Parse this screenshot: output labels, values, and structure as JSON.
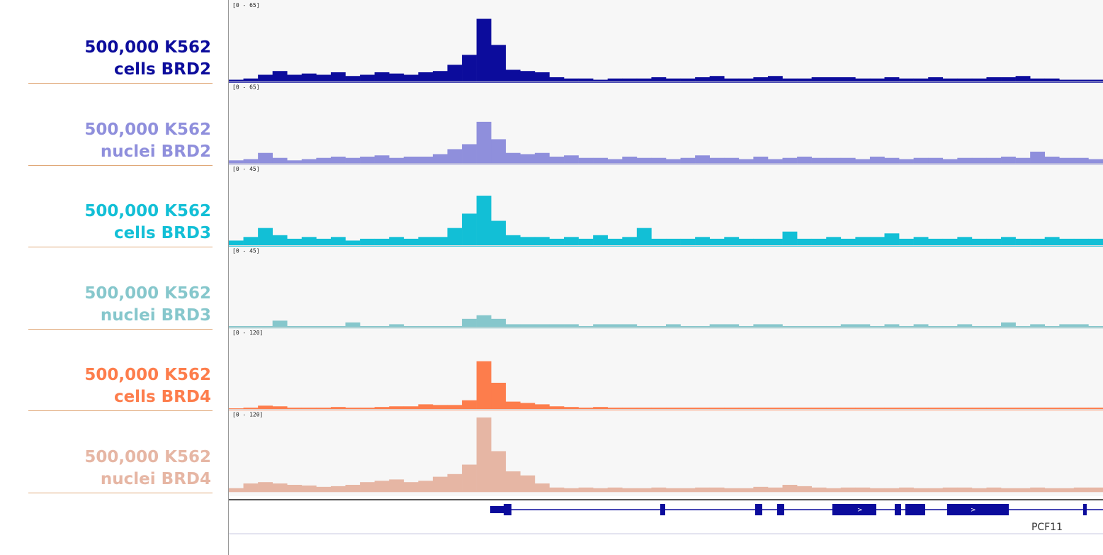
{
  "chart_data": [
    {
      "type": "bar",
      "title": "500,000 K562 cells BRD2",
      "color": "#0c0c9c",
      "ylim": [
        0,
        65
      ],
      "yticks": [
        {
          "value": 65,
          "label": "[0 - 65]"
        }
      ],
      "values": [
        2,
        3,
        6,
        9,
        6,
        7,
        6,
        8,
        5,
        6,
        8,
        7,
        6,
        8,
        9,
        14,
        22,
        51,
        30,
        10,
        9,
        8,
        4,
        3,
        3,
        2,
        3,
        3,
        3,
        4,
        3,
        3,
        4,
        5,
        3,
        3,
        4,
        5,
        3,
        3,
        4,
        4,
        4,
        3,
        3,
        4,
        3,
        3,
        4,
        3,
        3,
        3,
        4,
        4,
        5,
        3,
        3,
        2,
        2,
        2
      ]
    },
    {
      "type": "bar",
      "title": "500,000 K562 nuclei BRD2",
      "color": "#8f8fdc",
      "ylim": [
        0,
        65
      ],
      "yticks": [
        {
          "value": 65,
          "label": "[0 - 65]"
        }
      ],
      "values": [
        3,
        4,
        9,
        5,
        3,
        4,
        5,
        6,
        5,
        6,
        7,
        5,
        6,
        6,
        8,
        12,
        16,
        34,
        20,
        9,
        8,
        9,
        6,
        7,
        5,
        5,
        4,
        6,
        5,
        5,
        4,
        5,
        7,
        5,
        5,
        4,
        6,
        4,
        5,
        6,
        5,
        5,
        5,
        4,
        6,
        5,
        4,
        5,
        5,
        4,
        5,
        5,
        5,
        6,
        5,
        10,
        6,
        5,
        5,
        4
      ]
    },
    {
      "type": "bar",
      "title": "500,000 K562 cells BRD3",
      "color": "#12bfd6",
      "ylim": [
        0,
        45
      ],
      "yticks": [
        {
          "value": 45,
          "label": "[0 - 45]"
        }
      ],
      "values": [
        3,
        5,
        10,
        6,
        4,
        5,
        4,
        5,
        3,
        4,
        4,
        5,
        4,
        5,
        5,
        10,
        18,
        28,
        14,
        6,
        5,
        5,
        4,
        5,
        4,
        6,
        4,
        5,
        10,
        4,
        4,
        4,
        5,
        4,
        5,
        4,
        4,
        4,
        8,
        4,
        4,
        5,
        4,
        5,
        5,
        7,
        4,
        5,
        4,
        4,
        5,
        4,
        4,
        5,
        4,
        4,
        5,
        4,
        4,
        4
      ]
    },
    {
      "type": "bar",
      "title": "500,000 K562 nuclei BRD3",
      "color": "#86c7cc",
      "ylim": [
        0,
        45
      ],
      "yticks": [
        {
          "value": 45,
          "label": "[0 - 45]"
        }
      ],
      "values": [
        1,
        1,
        1,
        4,
        1,
        1,
        1,
        1,
        3,
        1,
        1,
        2,
        1,
        1,
        1,
        1,
        5,
        7,
        5,
        2,
        2,
        2,
        2,
        2,
        1,
        2,
        2,
        2,
        1,
        1,
        2,
        1,
        1,
        2,
        2,
        1,
        2,
        2,
        1,
        1,
        1,
        1,
        2,
        2,
        1,
        2,
        1,
        2,
        1,
        1,
        2,
        1,
        1,
        3,
        1,
        2,
        1,
        2,
        2,
        1
      ]
    },
    {
      "type": "bar",
      "title": "500,000 K562 cells BRD4",
      "color": "#fd7d4c",
      "ylim": [
        0,
        120
      ],
      "yticks": [
        {
          "value": 120,
          "label": "[0 - 120]"
        }
      ],
      "values": [
        2,
        3,
        6,
        5,
        3,
        3,
        3,
        4,
        3,
        3,
        4,
        5,
        5,
        8,
        7,
        7,
        14,
        72,
        40,
        12,
        10,
        8,
        5,
        4,
        3,
        4,
        3,
        3,
        3,
        3,
        3,
        3,
        3,
        3,
        3,
        3,
        3,
        3,
        3,
        3,
        3,
        3,
        3,
        3,
        3,
        3,
        3,
        3,
        3,
        3,
        3,
        3,
        3,
        3,
        3,
        3,
        3,
        3,
        3,
        3
      ]
    },
    {
      "type": "bar",
      "title": "500,000 K562 nuclei BRD4",
      "color": "#e6b6a4",
      "ylim": [
        0,
        120
      ],
      "yticks": [
        {
          "value": 120,
          "label": "[0 - 120]"
        }
      ],
      "values": [
        5,
        12,
        14,
        12,
        10,
        9,
        7,
        8,
        10,
        14,
        16,
        18,
        14,
        16,
        22,
        26,
        40,
        110,
        60,
        30,
        24,
        12,
        6,
        5,
        6,
        5,
        6,
        5,
        5,
        6,
        5,
        5,
        6,
        6,
        5,
        5,
        7,
        6,
        10,
        8,
        6,
        5,
        6,
        6,
        5,
        5,
        6,
        5,
        5,
        6,
        6,
        5,
        6,
        5,
        5,
        6,
        5,
        5,
        6,
        6
      ]
    }
  ],
  "gene": {
    "name": "PCF11"
  }
}
